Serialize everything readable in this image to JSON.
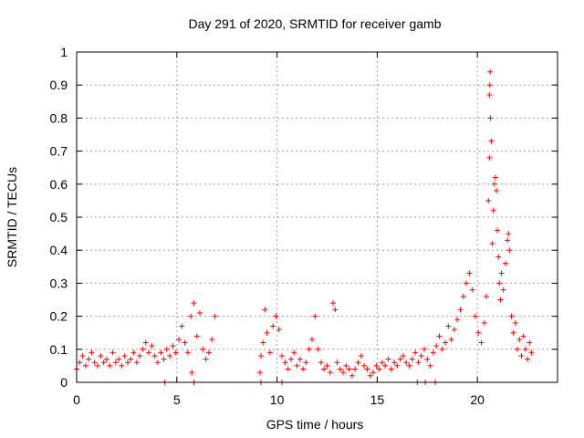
{
  "chart_data": {
    "type": "scatter",
    "title": "Day 291 of 2020, SRMTID for receiver gamb",
    "xlabel": "GPS time / hours",
    "ylabel": "SRMTID / TECUs",
    "xlim": [
      0,
      24
    ],
    "ylim": [
      0,
      1
    ],
    "xticks": [
      0,
      5,
      10,
      15,
      20
    ],
    "xtick_labels": [
      "0",
      "5",
      "10",
      "15",
      "20"
    ],
    "yticks": [
      0,
      0.1,
      0.2,
      0.3,
      0.4,
      0.5,
      0.6,
      0.7,
      0.8,
      0.9,
      1
    ],
    "ytick_labels": [
      "0",
      "0.1",
      "0.2",
      "0.3",
      "0.4",
      "0.5",
      "0.6",
      "0.7",
      "0.8",
      "0.9",
      "1"
    ],
    "grid": true,
    "marker": "+",
    "color": "#ff0000",
    "series": [
      {
        "name": "SRMTID",
        "points": [
          [
            0.0,
            0.04
          ],
          [
            0.15,
            0.06
          ],
          [
            0.3,
            0.08
          ],
          [
            0.45,
            0.05
          ],
          [
            0.6,
            0.07
          ],
          [
            0.75,
            0.09
          ],
          [
            0.9,
            0.06
          ],
          [
            1.05,
            0.05
          ],
          [
            1.2,
            0.08
          ],
          [
            1.35,
            0.06
          ],
          [
            1.5,
            0.07
          ],
          [
            1.65,
            0.05
          ],
          [
            1.8,
            0.09
          ],
          [
            1.95,
            0.06
          ],
          [
            2.1,
            0.07
          ],
          [
            2.25,
            0.05
          ],
          [
            2.4,
            0.08
          ],
          [
            2.55,
            0.06
          ],
          [
            2.7,
            0.07
          ],
          [
            2.85,
            0.09
          ],
          [
            3.0,
            0.06
          ],
          [
            3.15,
            0.08
          ],
          [
            3.3,
            0.1
          ],
          [
            3.45,
            0.12
          ],
          [
            3.6,
            0.09
          ],
          [
            3.75,
            0.11
          ],
          [
            3.9,
            0.08
          ],
          [
            4.05,
            0.06
          ],
          [
            4.2,
            0.09
          ],
          [
            4.35,
            0.07
          ],
          [
            4.5,
            0.1
          ],
          [
            4.65,
            0.08
          ],
          [
            4.8,
            0.11
          ],
          [
            4.95,
            0.09
          ],
          [
            5.1,
            0.13
          ],
          [
            5.25,
            0.17
          ],
          [
            5.4,
            0.12
          ],
          [
            5.55,
            0.09
          ],
          [
            5.7,
            0.2
          ],
          [
            5.85,
            0.24
          ],
          [
            6.0,
            0.14
          ],
          [
            6.15,
            0.21
          ],
          [
            6.3,
            0.1
          ],
          [
            6.45,
            0.07
          ],
          [
            6.6,
            0.09
          ],
          [
            6.75,
            0.13
          ],
          [
            6.9,
            0.2
          ],
          [
            4.4,
            0.0
          ],
          [
            5.85,
            0.0
          ],
          [
            5.75,
            0.03
          ],
          [
            9.15,
            0.03
          ],
          [
            9.2,
            0.08
          ],
          [
            9.3,
            0.12
          ],
          [
            9.4,
            0.22
          ],
          [
            9.5,
            0.15
          ],
          [
            9.65,
            0.09
          ],
          [
            9.8,
            0.17
          ],
          [
            9.95,
            0.2
          ],
          [
            10.1,
            0.16
          ],
          [
            10.25,
            0.08
          ],
          [
            10.4,
            0.06
          ],
          [
            10.55,
            0.04
          ],
          [
            10.7,
            0.07
          ],
          [
            10.85,
            0.09
          ],
          [
            11.0,
            0.05
          ],
          [
            11.15,
            0.07
          ],
          [
            11.3,
            0.04
          ],
          [
            11.45,
            0.06
          ],
          [
            11.6,
            0.1
          ],
          [
            11.75,
            0.13
          ],
          [
            11.9,
            0.2
          ],
          [
            12.05,
            0.1
          ],
          [
            12.2,
            0.06
          ],
          [
            12.35,
            0.04
          ],
          [
            12.5,
            0.05
          ],
          [
            12.65,
            0.03
          ],
          [
            12.8,
            0.24
          ],
          [
            12.9,
            0.22
          ],
          [
            13.0,
            0.06
          ],
          [
            13.15,
            0.04
          ],
          [
            13.3,
            0.03
          ],
          [
            13.45,
            0.05
          ],
          [
            13.6,
            0.04
          ],
          [
            13.75,
            0.02
          ],
          [
            13.9,
            0.04
          ],
          [
            14.05,
            0.06
          ],
          [
            14.2,
            0.08
          ],
          [
            14.35,
            0.05
          ],
          [
            14.5,
            0.04
          ],
          [
            14.65,
            0.02
          ],
          [
            14.8,
            0.03
          ],
          [
            14.95,
            0.05
          ],
          [
            15.1,
            0.04
          ],
          [
            15.25,
            0.06
          ],
          [
            15.4,
            0.05
          ],
          [
            15.55,
            0.07
          ],
          [
            15.7,
            0.04
          ],
          [
            15.85,
            0.06
          ],
          [
            16.0,
            0.05
          ],
          [
            16.15,
            0.07
          ],
          [
            16.3,
            0.08
          ],
          [
            16.45,
            0.06
          ],
          [
            16.6,
            0.05
          ],
          [
            16.75,
            0.07
          ],
          [
            16.9,
            0.09
          ],
          [
            17.05,
            0.06
          ],
          [
            17.2,
            0.08
          ],
          [
            17.35,
            0.1
          ],
          [
            17.5,
            0.07
          ],
          [
            17.65,
            0.05
          ],
          [
            17.8,
            0.09
          ],
          [
            17.95,
            0.11
          ],
          [
            18.1,
            0.14
          ],
          [
            18.25,
            0.1
          ],
          [
            18.4,
            0.12
          ],
          [
            18.55,
            0.17
          ],
          [
            18.7,
            0.13
          ],
          [
            18.85,
            0.16
          ],
          [
            19.0,
            0.19
          ],
          [
            19.15,
            0.22
          ],
          [
            19.3,
            0.26
          ],
          [
            19.45,
            0.3
          ],
          [
            19.6,
            0.33
          ],
          [
            19.75,
            0.28
          ],
          [
            19.9,
            0.2
          ],
          [
            20.05,
            0.15
          ],
          [
            20.2,
            0.12
          ],
          [
            20.35,
            0.18
          ],
          [
            20.45,
            0.26
          ],
          [
            20.55,
            0.55
          ],
          [
            20.6,
            0.68
          ],
          [
            20.65,
            0.8
          ],
          [
            20.6,
            0.87
          ],
          [
            20.62,
            0.9
          ],
          [
            20.64,
            0.94
          ],
          [
            20.7,
            0.73
          ],
          [
            20.75,
            0.42
          ],
          [
            20.8,
            0.52
          ],
          [
            20.85,
            0.6
          ],
          [
            20.9,
            0.62
          ],
          [
            20.95,
            0.58
          ],
          [
            21.0,
            0.46
          ],
          [
            21.05,
            0.38
          ],
          [
            21.1,
            0.3
          ],
          [
            21.15,
            0.25
          ],
          [
            21.2,
            0.33
          ],
          [
            21.3,
            0.28
          ],
          [
            21.4,
            0.36
          ],
          [
            21.5,
            0.43
          ],
          [
            21.55,
            0.45
          ],
          [
            21.6,
            0.4
          ],
          [
            21.7,
            0.2
          ],
          [
            21.8,
            0.15
          ],
          [
            21.9,
            0.18
          ],
          [
            22.0,
            0.1
          ],
          [
            22.1,
            0.13
          ],
          [
            22.2,
            0.08
          ],
          [
            22.3,
            0.14
          ],
          [
            22.4,
            0.1
          ],
          [
            22.5,
            0.07
          ],
          [
            22.6,
            0.12
          ],
          [
            22.7,
            0.09
          ],
          [
            17.0,
            0.0
          ],
          [
            17.4,
            0.0
          ],
          [
            17.9,
            0.0
          ],
          [
            10.25,
            0.0
          ],
          [
            9.2,
            0.0
          ]
        ]
      }
    ]
  }
}
